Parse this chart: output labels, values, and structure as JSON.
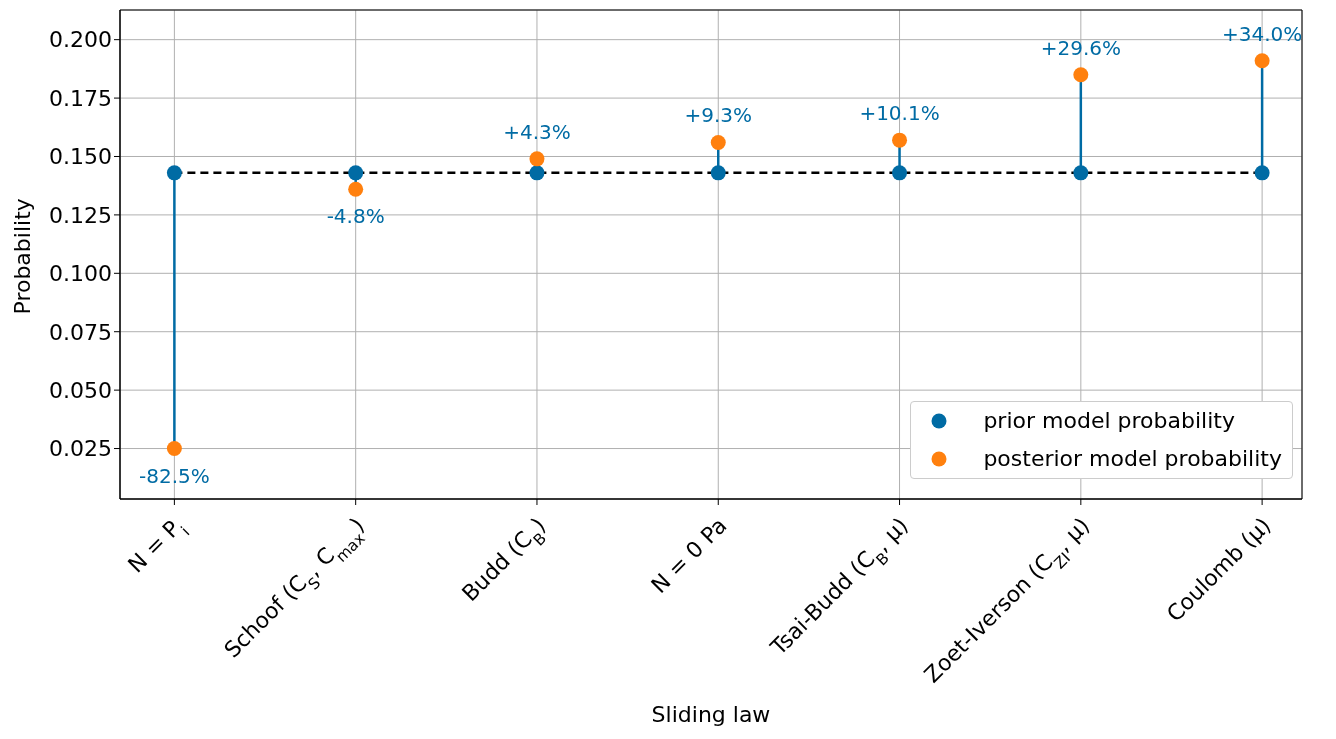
{
  "chart_data": {
    "type": "scatter",
    "xlabel": "Sliding law",
    "ylabel": "Probability",
    "categories": [
      "N = P$_{i}$",
      "Schoof (C$_{S}$, C$_{max}$)",
      "Budd (C$_{B}$)",
      "N = 0 Pa",
      "Tsai-Budd (C$_{B}$, μ)",
      "Zoet-Iverson (C$_{ZI}$, μ)",
      "Coulomb (μ)"
    ],
    "series": [
      {
        "name": "prior model probability",
        "color": "#006ba4",
        "values": [
          0.143,
          0.143,
          0.143,
          0.143,
          0.143,
          0.143,
          0.143
        ]
      },
      {
        "name": "posterior model probability",
        "color": "#ff800e",
        "values": [
          0.025,
          0.136,
          0.149,
          0.156,
          0.157,
          0.185,
          0.191
        ]
      }
    ],
    "annotations": [
      {
        "text": "-82.5%",
        "x": "N = P$_{i}$",
        "y": 0.025
      },
      {
        "text": "-4.8%",
        "x": "Schoof (C$_{S}$, C$_{max}$)",
        "y": 0.136
      },
      {
        "text": "+4.3%",
        "x": "Budd (C$_{B}$)",
        "y": 0.149
      },
      {
        "text": "+9.3%",
        "x": "N = 0 Pa",
        "y": 0.156
      },
      {
        "text": "+10.1%",
        "x": "Tsai-Budd (C$_{B}$, μ)",
        "y": 0.157
      },
      {
        "text": "+29.6%",
        "x": "Zoet-Iverson (C$_{ZI}$, μ)",
        "y": 0.185
      },
      {
        "text": "+34.0%",
        "x": "Coulomb (μ)",
        "y": 0.191
      }
    ],
    "ylim": [
      0.0034,
      0.2127
    ],
    "yticks": [
      {
        "value": 0.025,
        "label": "0.025"
      },
      {
        "value": 0.05,
        "label": "0.050"
      },
      {
        "value": 0.075,
        "label": "0.075"
      },
      {
        "value": 0.1,
        "label": "0.100"
      },
      {
        "value": 0.125,
        "label": "0.125"
      },
      {
        "value": 0.15,
        "label": "0.150"
      },
      {
        "value": 0.175,
        "label": "0.175"
      },
      {
        "value": 0.2,
        "label": "0.200"
      }
    ],
    "ref_lines": [
      {
        "axis": "y",
        "value": 0.143,
        "color": "#000000",
        "line_style": "dashed"
      }
    ],
    "grid": true,
    "legend": "bottom right",
    "marker": "circle"
  }
}
